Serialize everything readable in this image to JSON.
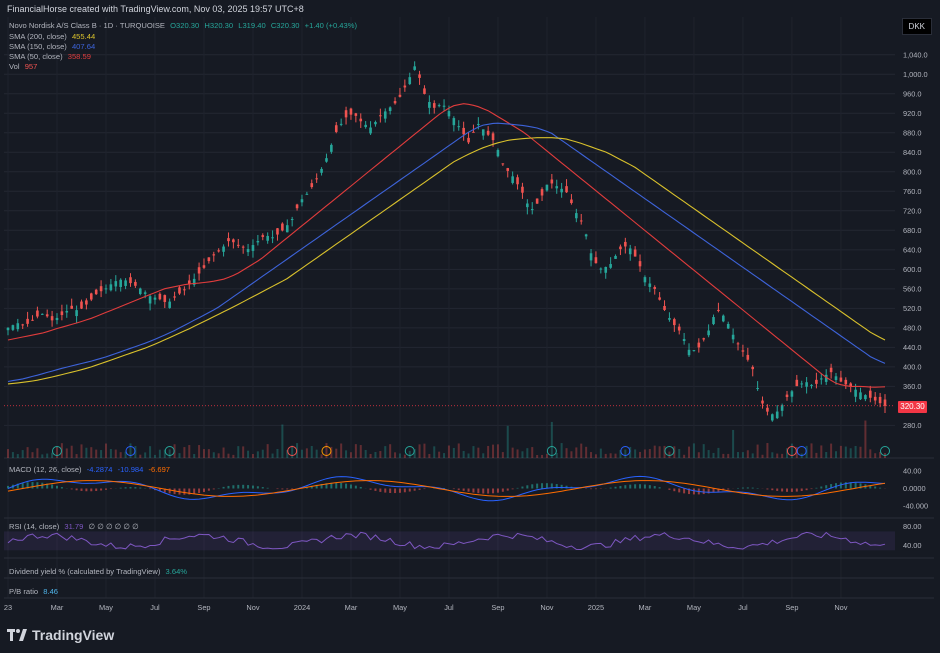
{
  "header": {
    "title": "FinancialHorse created with TradingView.com, Nov 03, 2025 19:57 UTC+8",
    "currency": "DKK"
  },
  "legend": {
    "symbol": "Novo Nordisk A/S Class B · 1D · TURQUOISE",
    "o": "O320.30",
    "h": "H320.30",
    "l": "L319.40",
    "c": "C320.30",
    "chg": "+1.40 (+0.43%)",
    "sma200_label": "SMA (200, close)",
    "sma200_value": "455.44",
    "sma150_label": "SMA (150, close)",
    "sma150_value": "407.64",
    "sma50_label": "SMA (50, close)",
    "sma50_value": "358.59",
    "vol_label": "Vol",
    "vol_value": "957"
  },
  "colors": {
    "up": "#26a69a",
    "down": "#ef5350",
    "sma200": "#d9c12c",
    "sma150": "#3d63d9",
    "sma50": "#e03c3c",
    "macd": "#2962ff",
    "signal": "#ff6d00",
    "rsi": "#7e57c2",
    "dividend": "#26a69a",
    "pb": "#4fb3e8"
  },
  "macd": {
    "label": "MACD (12, 26, close)",
    "v1": "-4.2874",
    "v2": "-10.984",
    "v3": "-6.697"
  },
  "rsi": {
    "label": "RSI (14, close)",
    "value": "31.79",
    "extra": "∅ ∅ ∅ ∅ ∅ ∅"
  },
  "dividend": {
    "label": "Dividend yield % (calculated by TradingView)",
    "value": "3.64%"
  },
  "pb": {
    "label": "P/B ratio",
    "value": "8.46"
  },
  "price_tag": "320.30",
  "brand": "TradingView",
  "chart_data": {
    "type": "line",
    "title": "Novo Nordisk A/S Class B · 1D · TURQUOISE",
    "y_ticks": [
      "1,040.0",
      "1,000.0",
      "960.0",
      "920.0",
      "880.0",
      "840.0",
      "800.0",
      "760.0",
      "720.0",
      "680.0",
      "640.0",
      "600.0",
      "560.0",
      "520.0",
      "480.0",
      "440.0",
      "400.0",
      "360.0",
      "280.0"
    ],
    "ylim": [
      250,
      1060
    ],
    "x_ticks": [
      "23",
      "Mar",
      "May",
      "Jul",
      "Sep",
      "Nov",
      "2024",
      "Mar",
      "May",
      "Jul",
      "Sep",
      "Nov",
      "2025",
      "Mar",
      "May",
      "Jul",
      "Sep",
      "Nov"
    ],
    "x_tick_index": [
      0,
      10,
      20,
      30,
      40,
      50,
      60,
      70,
      80,
      90,
      100,
      110,
      120,
      130,
      140,
      150,
      160,
      170
    ],
    "series": [
      {
        "name": "Price",
        "values": [
          480,
          490,
          485,
          500,
          510,
          495,
          505,
          520,
          515,
          530,
          550,
          560,
          575,
          580,
          570,
          560,
          545,
          540,
          530,
          545,
          560,
          580,
          600,
          625,
          640,
          660,
          650,
          640,
          655,
          670,
          665,
          680,
          700,
          740,
          760,
          790,
          830,
          880,
          910,
          920,
          900,
          890,
          915,
          930,
          945,
          980,
          1020,
          960,
          930,
          940,
          920,
          890,
          860,
          900,
          880,
          860,
          810,
          790,
          760,
          720,
          740,
          780,
          770,
          760,
          720,
          690,
          620,
          600,
          610,
          640,
          650,
          620,
          580,
          560,
          520,
          490,
          470,
          430,
          440,
          470,
          520,
          500,
          460,
          430,
          400,
          330,
          300,
          310,
          340,
          360,
          370,
          360,
          380,
          390,
          370,
          360,
          350,
          340,
          330,
          320
        ]
      },
      {
        "name": "SMA (50, close)",
        "values": [
          455,
          460,
          465,
          470,
          478,
          485,
          492,
          500,
          510,
          520,
          530,
          540,
          550,
          560,
          565,
          570,
          572,
          575,
          580,
          590,
          605,
          620,
          640,
          660,
          680,
          700,
          720,
          740,
          760,
          780,
          800,
          820,
          840,
          860,
          880,
          900,
          920,
          935,
          940,
          935,
          925,
          910,
          895,
          880,
          860,
          840,
          820,
          800,
          780,
          760,
          740,
          720,
          700,
          680,
          660,
          640,
          620,
          600,
          580,
          560,
          540,
          520,
          500,
          480,
          460,
          440,
          420,
          400,
          380,
          365,
          360,
          360,
          358,
          359
        ]
      },
      {
        "name": "SMA (150, close)",
        "values": [
          370,
          375,
          382,
          390,
          398,
          405,
          412,
          420,
          430,
          440,
          450,
          462,
          475,
          490,
          505,
          520,
          540,
          560,
          580,
          600,
          620,
          640,
          660,
          680,
          700,
          720,
          740,
          760,
          780,
          800,
          820,
          840,
          860,
          880,
          895,
          900,
          898,
          895,
          890,
          880,
          860,
          840,
          820,
          800,
          780,
          760,
          740,
          720,
          700,
          680,
          660,
          640,
          620,
          600,
          580,
          560,
          540,
          520,
          500,
          480,
          460,
          440,
          420,
          407
        ]
      },
      {
        "name": "SMA (200, close)",
        "values": [
          365,
          368,
          372,
          378,
          385,
          392,
          400,
          410,
          420,
          430,
          440,
          452,
          465,
          478,
          492,
          506,
          520,
          535,
          550,
          565,
          580,
          600,
          620,
          640,
          660,
          680,
          700,
          720,
          740,
          760,
          780,
          800,
          820,
          835,
          848,
          858,
          865,
          868,
          870,
          870,
          868,
          860,
          850,
          840,
          825,
          810,
          790,
          770,
          750,
          730,
          710,
          690,
          670,
          650,
          630,
          610,
          590,
          570,
          550,
          530,
          510,
          490,
          470,
          455
        ]
      }
    ],
    "macd_ylim": [
      -60,
      60
    ],
    "macd_ticks": [
      "40.00",
      "0.0000",
      "-40.000"
    ],
    "rsi_ylim": [
      20,
      90
    ],
    "rsi_ticks": [
      "80.00",
      "40.00"
    ],
    "grid": true,
    "legend_position": "top-left"
  }
}
